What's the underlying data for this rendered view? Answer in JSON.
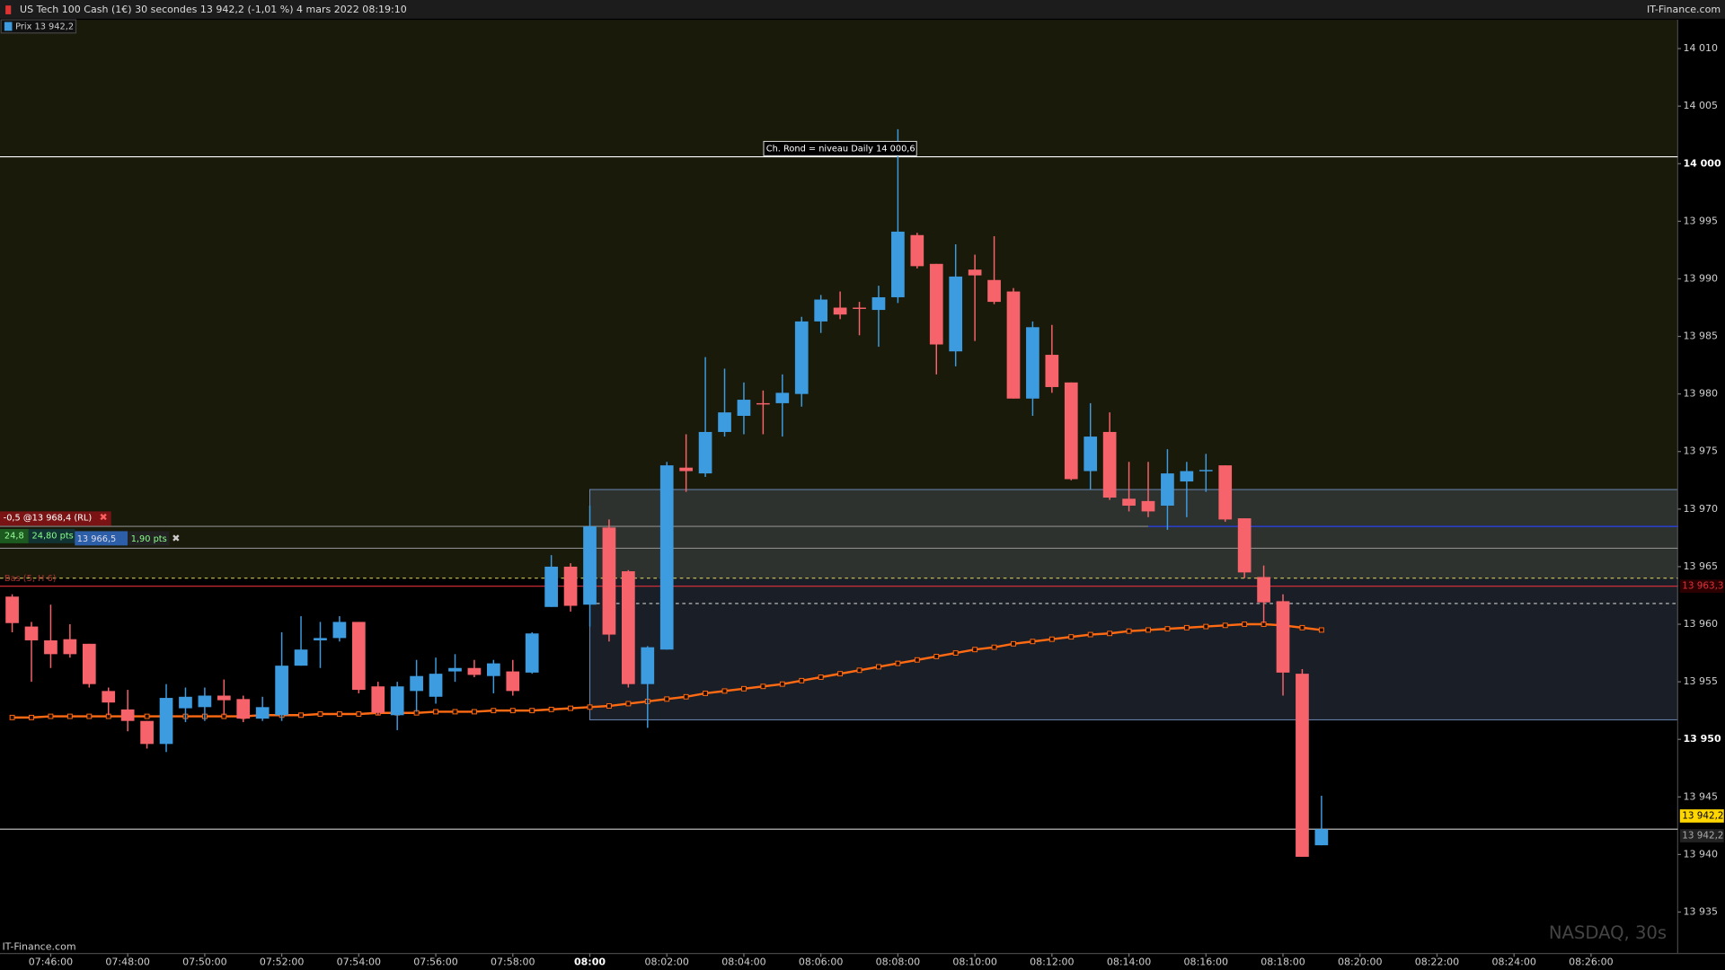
{
  "chart_data": {
    "type": "candlestick",
    "title": "US Tech 100 Cash (1€) 30 secondes 13 942,2 (-1,01 %) 4 mars 2022 08:19:10",
    "brand": "IT-Finance.com",
    "legend_label": "Prix 13 942,2",
    "watermark": "NASDAQ, 30s",
    "footer": "IT-Finance.com",
    "up_color": "#3d9be0",
    "down_color": "#f7636b",
    "x": [
      "07:45:00",
      "07:45:30",
      "07:46:00",
      "07:46:30",
      "07:47:00",
      "07:47:30",
      "07:48:00",
      "07:48:30",
      "07:49:00",
      "07:49:30",
      "07:50:00",
      "07:50:30",
      "07:51:00",
      "07:51:30",
      "07:52:00",
      "07:52:30",
      "07:53:00",
      "07:53:30",
      "07:54:00",
      "07:54:30",
      "07:55:00",
      "07:55:30",
      "07:56:00",
      "07:56:30",
      "07:57:00",
      "07:57:30",
      "07:58:00",
      "07:58:30",
      "07:59:00",
      "07:59:30",
      "08:00:00",
      "08:00:30",
      "08:01:00",
      "08:01:30",
      "08:02:00",
      "08:02:30",
      "08:03:00",
      "08:03:30",
      "08:04:00",
      "08:04:30",
      "08:05:00",
      "08:05:30",
      "08:06:00",
      "08:06:30",
      "08:07:00",
      "08:07:30",
      "08:08:00",
      "08:08:30",
      "08:09:00",
      "08:09:30",
      "08:10:00",
      "08:10:30",
      "08:11:00",
      "08:11:30",
      "08:12:00",
      "08:12:30",
      "08:13:00",
      "08:13:30",
      "08:14:00",
      "08:14:30",
      "08:15:00",
      "08:15:30",
      "08:16:00",
      "08:16:30",
      "08:17:00",
      "08:17:30",
      "08:18:00",
      "08:18:30",
      "08:19:00"
    ],
    "open": [
      13962.4,
      13959.8,
      13958.6,
      13958.7,
      13958.3,
      13954.2,
      13952.6,
      13951.6,
      13949.6,
      13952.7,
      13952.8,
      13953.8,
      13953.5,
      13951.8,
      13952.1,
      13956.4,
      13958.6,
      13958.8,
      13960.2,
      13954.6,
      13952.1,
      13954.2,
      13953.7,
      13955.9,
      13956.2,
      13955.5,
      13955.9,
      13955.8,
      13961.5,
      13965.0,
      13961.7,
      13968.4,
      13964.6,
      13954.8,
      13957.8,
      13973.6,
      13973.1,
      13976.7,
      13978.1,
      13979.2,
      13979.2,
      13980.0,
      13986.3,
      13987.5,
      13987.5,
      13987.3,
      13988.4,
      13993.8,
      13991.3,
      13983.7,
      13990.8,
      13989.9,
      13988.9,
      13979.6,
      13983.4,
      13981.0,
      13973.3,
      13976.7,
      13970.9,
      13970.7,
      13970.3,
      13972.4,
      13973.3,
      13973.8,
      13969.2,
      13964.1,
      13962.0,
      13955.7,
      13940.8
    ],
    "high": [
      13962.6,
      13960.2,
      13961.7,
      13960.0,
      13958.3,
      13954.5,
      13954.3,
      13951.6,
      13954.8,
      13954.5,
      13954.5,
      13955.2,
      13953.8,
      13953.7,
      13959.3,
      13960.7,
      13960.2,
      13960.7,
      13960.2,
      13955.0,
      13955.0,
      13956.9,
      13957.1,
      13957.4,
      13956.9,
      13956.9,
      13956.9,
      13959.3,
      13966.0,
      13965.3,
      13970.3,
      13969.1,
      13964.7,
      13958.1,
      13974.1,
      13976.5,
      13983.2,
      13982.2,
      13981.0,
      13980.3,
      13981.7,
      13986.7,
      13988.6,
      13988.9,
      13988.0,
      13989.4,
      14003.0,
      13994.0,
      13991.3,
      13993.0,
      13992.1,
      13993.7,
      13989.2,
      13986.3,
      13986.0,
      13981.0,
      13979.2,
      13978.4,
      13974.1,
      13974.1,
      13975.2,
      13974.1,
      13974.8,
      13973.8,
      13969.2,
      13965.1,
      13962.6,
      13956.1,
      13945.1
    ],
    "low": [
      13959.3,
      13955.0,
      13956.2,
      13957.1,
      13954.5,
      13952.1,
      13950.7,
      13949.2,
      13948.9,
      13951.5,
      13951.6,
      13952.1,
      13951.5,
      13951.6,
      13951.6,
      13956.4,
      13956.2,
      13958.5,
      13954.0,
      13952.1,
      13950.8,
      13952.4,
      13953.1,
      13955.0,
      13955.4,
      13954.0,
      13953.8,
      13955.7,
      13961.5,
      13961.1,
      13959.8,
      13958.5,
      13954.5,
      13951.0,
      13957.8,
      13971.5,
      13972.8,
      13976.3,
      13976.5,
      13976.5,
      13976.3,
      13978.9,
      13985.3,
      13986.5,
      13985.1,
      13984.1,
      13987.9,
      13990.9,
      13981.7,
      13982.4,
      13984.6,
      13987.8,
      13979.6,
      13978.1,
      13980.1,
      13972.5,
      13971.7,
      13970.8,
      13969.8,
      13969.3,
      13968.2,
      13969.3,
      13971.5,
      13968.9,
      13964.0,
      13960.1,
      13953.8,
      13939.8,
      13940.8
    ],
    "close": [
      13960.1,
      13958.6,
      13957.4,
      13957.4,
      13954.8,
      13953.2,
      13951.6,
      13949.6,
      13953.6,
      13953.7,
      13953.8,
      13953.4,
      13951.8,
      13952.8,
      13956.4,
      13957.8,
      13958.8,
      13960.2,
      13954.3,
      13952.3,
      13954.6,
      13955.5,
      13955.7,
      13956.2,
      13955.6,
      13956.6,
      13954.2,
      13959.2,
      13965.0,
      13961.6,
      13968.5,
      13959.1,
      13954.8,
      13958.0,
      13973.8,
      13973.3,
      13976.7,
      13978.4,
      13979.5,
      13979.1,
      13980.1,
      13986.3,
      13988.2,
      13986.9,
      13987.4,
      13988.4,
      13994.1,
      13991.1,
      13984.3,
      13990.2,
      13990.3,
      13988.0,
      13979.6,
      13985.8,
      13980.6,
      13972.6,
      13976.3,
      13971.0,
      13970.3,
      13969.8,
      13973.1,
      13973.3,
      13973.4,
      13969.1,
      13964.5,
      13961.9,
      13955.8,
      13939.8,
      13942.2
    ],
    "ma": {
      "color": "#ff6a13",
      "values": [
        13951.9,
        13951.9,
        13952.0,
        13952.0,
        13952.0,
        13952.0,
        13952.0,
        13952.0,
        13952.0,
        13952.0,
        13952.0,
        13952.0,
        13952.0,
        13952.1,
        13952.1,
        13952.1,
        13952.2,
        13952.2,
        13952.2,
        13952.3,
        13952.3,
        13952.3,
        13952.4,
        13952.4,
        13952.4,
        13952.5,
        13952.5,
        13952.5,
        13952.6,
        13952.7,
        13952.8,
        13952.9,
        13953.1,
        13953.3,
        13953.5,
        13953.7,
        13954.0,
        13954.2,
        13954.4,
        13954.6,
        13954.8,
        13955.1,
        13955.4,
        13955.7,
        13956.0,
        13956.3,
        13956.6,
        13956.9,
        13957.2,
        13957.5,
        13957.8,
        13958.0,
        13958.3,
        13958.5,
        13958.7,
        13958.9,
        13959.1,
        13959.2,
        13959.4,
        13959.5,
        13959.6,
        13959.7,
        13959.8,
        13959.9,
        13960.0,
        13960.0,
        13959.9,
        13959.7,
        13959.5
      ]
    },
    "levels": [
      {
        "value": 14000.6,
        "color": "#ffffff"
      },
      {
        "value": 13968.5,
        "color": "#8a8a8a"
      },
      {
        "value": 13968.5,
        "color": "#1e3cff",
        "from": "08:14:30"
      },
      {
        "value": 13966.6,
        "color": "#8a8a8a"
      },
      {
        "value": 13964.0,
        "color": "#e8e060",
        "dash": true
      },
      {
        "value": 13963.3,
        "color": "#e0303a"
      },
      {
        "value": 13961.8,
        "color": "#cccccc",
        "dash": true,
        "from": "08:00:00"
      },
      {
        "value": 13942.2,
        "color": "#cccccc"
      }
    ],
    "zone": {
      "top": 13971.7,
      "bottom": 13951.7,
      "from": "08:00:00"
    },
    "annotation": {
      "text": "Ch. Rond = niveau Daily  14 000,6",
      "x": "08:08:00",
      "y": 14000.6
    },
    "price_labels": [
      {
        "value": 13942.2,
        "label": "13 942,2",
        "bg": "#ffd700",
        "fg": "#000000"
      },
      {
        "value": 13942.2,
        "label": "13 942,2",
        "bg": "#222222",
        "fg": "#aaaaaa"
      },
      {
        "value": 13963.3,
        "label": "13 963,3",
        "bg": "#2a0000",
        "fg": "#e0303a"
      }
    ],
    "order_tags": {
      "sell": "-0,5 @13 968,4 (RL)",
      "qty": "24,8",
      "pts": "24,80 pts",
      "price": "13 966,5",
      "diff": "1,90 pts",
      "low": "Bas (5, H 6)"
    },
    "ylim": [
      13931.4,
      14012.5
    ],
    "yticks": [
      {
        "value": 14010,
        "label": "14 010"
      },
      {
        "value": 14005,
        "label": "14 005"
      },
      {
        "value": 14000,
        "label": "14 000"
      },
      {
        "value": 13995,
        "label": "13 995"
      },
      {
        "value": 13990,
        "label": "13 990"
      },
      {
        "value": 13985,
        "label": "13 985"
      },
      {
        "value": 13980,
        "label": "13 980"
      },
      {
        "value": 13975,
        "label": "13 975"
      },
      {
        "value": 13970,
        "label": "13 970"
      },
      {
        "value": 13965,
        "label": "13 965"
      },
      {
        "value": 13960,
        "label": "13 960"
      },
      {
        "value": 13955,
        "label": "13 955"
      },
      {
        "value": 13950,
        "label": "13 950"
      },
      {
        "value": 13945,
        "label": "13 945"
      },
      {
        "value": 13940,
        "label": "13 940"
      },
      {
        "value": 13935,
        "label": "13 935"
      }
    ],
    "xlim": [
      "07:44:41",
      "08:28:15"
    ],
    "xticks": [
      "07:46:00",
      "07:48:00",
      "07:50:00",
      "07:52:00",
      "07:54:00",
      "07:56:00",
      "07:58:00",
      {
        "value": "08:00:00",
        "label": "08:00"
      },
      "08:02:00",
      "08:04:00",
      "08:06:00",
      "08:08:00",
      "08:10:00",
      "08:12:00",
      "08:14:00",
      "08:16:00",
      "08:18:00",
      "08:20:00",
      "08:22:00",
      "08:24:00",
      "08:26:00"
    ]
  }
}
